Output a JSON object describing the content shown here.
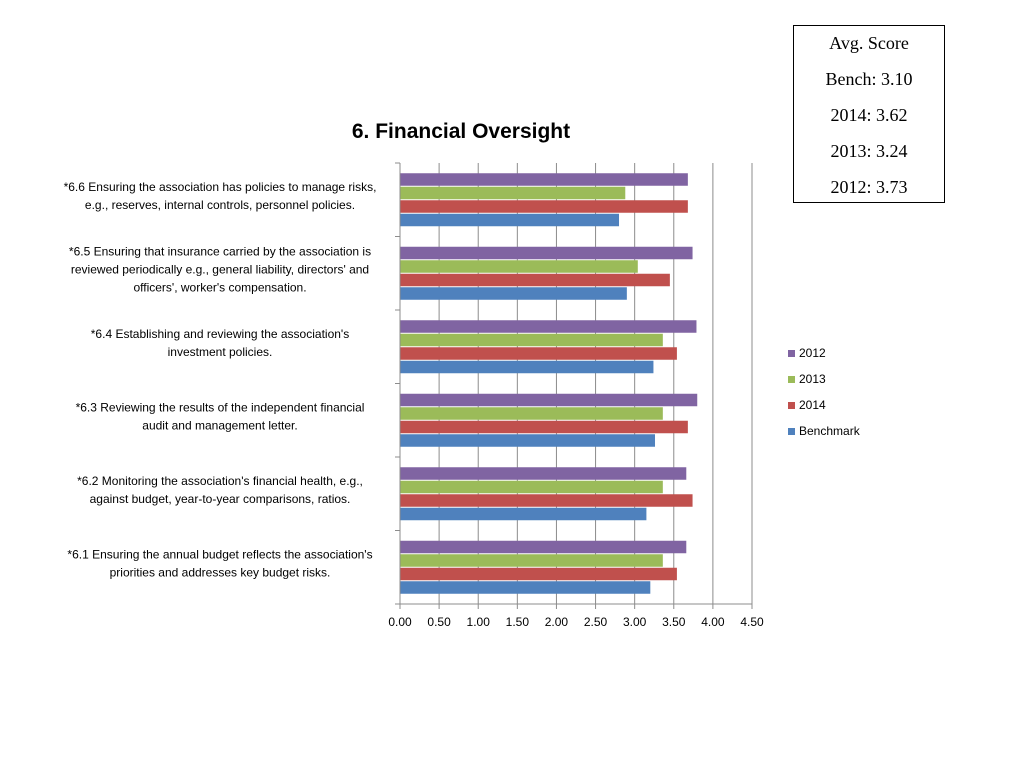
{
  "score_box": {
    "title": "Avg. Score",
    "lines": [
      "Bench: 3.10",
      "2014: 3.62",
      "2013: 3.24",
      "2012: 3.73"
    ]
  },
  "colors": {
    "2012": "#8064a2",
    "2013": "#9bbb59",
    "2014": "#c0504d",
    "Benchmark": "#4f81bd"
  },
  "chart_data": {
    "type": "bar",
    "orientation": "horizontal",
    "title": "6. Financial Oversight",
    "xlabel": "",
    "ylabel": "",
    "xlim": [
      0,
      4.5
    ],
    "x_ticks": [
      "0.00",
      "0.50",
      "1.00",
      "1.50",
      "2.00",
      "2.50",
      "3.00",
      "3.50",
      "4.00",
      "4.50"
    ],
    "grid": true,
    "legend_position": "right",
    "categories": [
      [
        "*6.6 Ensuring the association has policies to manage risks,",
        "e.g., reserves, internal controls, personnel policies."
      ],
      [
        "*6.5 Ensuring that insurance carried by the association is",
        "reviewed periodically e.g., general liability, directors' and",
        "officers', worker's compensation."
      ],
      [
        "*6.4 Establishing and reviewing the association's",
        "investment policies."
      ],
      [
        "*6.3 Reviewing the results of the independent financial",
        "audit and management letter."
      ],
      [
        "*6.2 Monitoring the association's financial health, e.g.,",
        "against budget, year-to-year comparisons, ratios."
      ],
      [
        "*6.1 Ensuring the annual budget reflects the association's",
        "priorities and addresses key budget risks."
      ]
    ],
    "series": [
      {
        "name": "2012",
        "values": [
          3.68,
          3.74,
          3.79,
          3.8,
          3.66,
          3.66
        ]
      },
      {
        "name": "2013",
        "values": [
          2.88,
          3.04,
          3.36,
          3.36,
          3.36,
          3.36
        ]
      },
      {
        "name": "2014",
        "values": [
          3.68,
          3.45,
          3.54,
          3.68,
          3.74,
          3.54
        ]
      },
      {
        "name": "Benchmark",
        "values": [
          2.8,
          2.9,
          3.24,
          3.26,
          3.15,
          3.2
        ]
      }
    ]
  }
}
